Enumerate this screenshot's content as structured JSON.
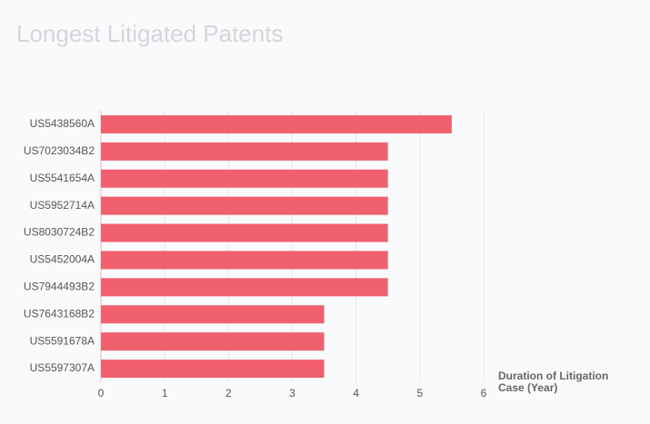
{
  "chart_data": {
    "type": "bar",
    "orientation": "horizontal",
    "title": "Longest Litigated Patents",
    "x_label": "Duration of Litigation Case (Year)",
    "categories": [
      "US5438560A",
      "US7023034B2",
      "US5541654A",
      "US5952714A",
      "US8030724B2",
      "US5452004A",
      "US7944493B2",
      "US7643168B2",
      "US5591678A",
      "US5597307A"
    ],
    "values": [
      5.5,
      4.5,
      4.5,
      4.5,
      4.5,
      4.5,
      4.5,
      3.5,
      3.5,
      3.5
    ],
    "color": "#f0606f",
    "xlim": [
      0,
      6
    ],
    "xticks": [
      0,
      1,
      2,
      3,
      4,
      5,
      6
    ],
    "grid": true
  }
}
